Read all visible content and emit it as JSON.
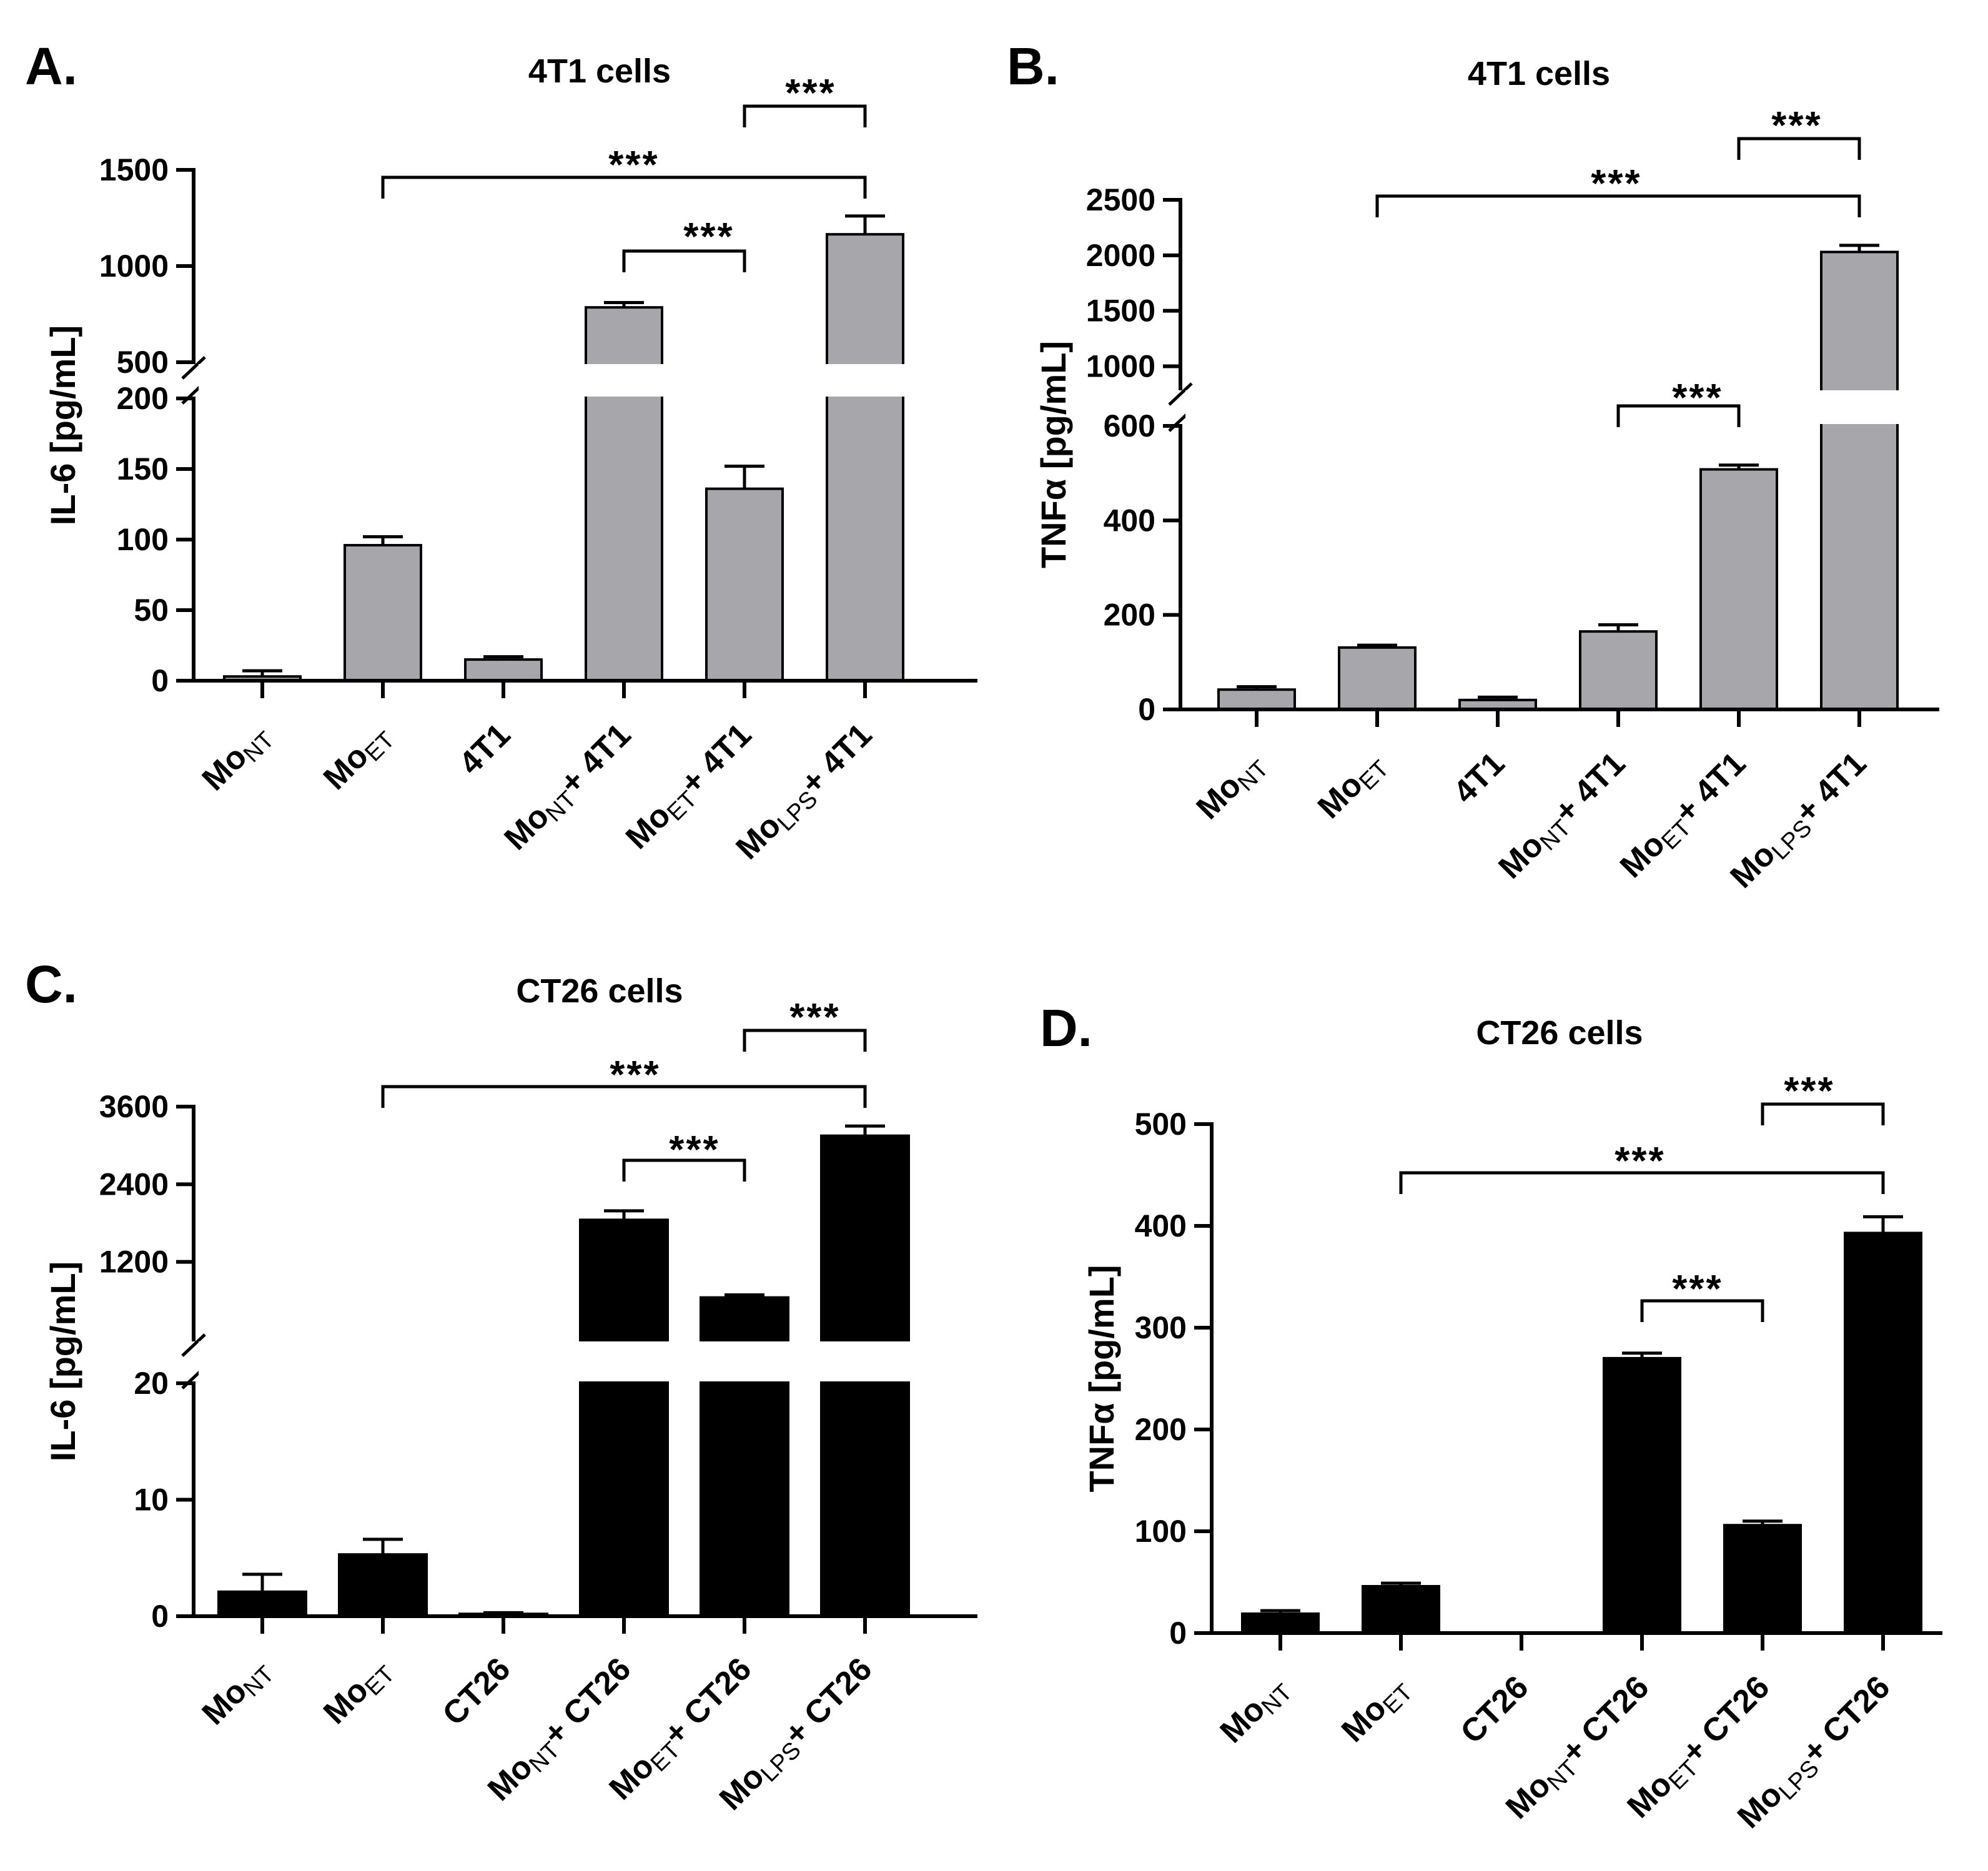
{
  "colors": {
    "gray_bar": "#a6a6ab",
    "black_bar": "#000000"
  },
  "chart_data": [
    {
      "panel": "A.",
      "type": "bar",
      "title": "4T1 cells",
      "ylabel": "IL-6 [pg/mL]",
      "broken_axis": true,
      "lower_range": [
        0,
        200
      ],
      "upper_range": [
        500,
        1500
      ],
      "lower_ticks": [
        "0",
        "50",
        "100",
        "150",
        "200"
      ],
      "upper_ticks": [
        "500",
        "1000",
        "1500"
      ],
      "categories": [
        {
          "main": "Mo",
          "sub": "NT",
          "rest": ""
        },
        {
          "main": "Mo",
          "sub": "ET",
          "rest": ""
        },
        {
          "main": "4T1",
          "sub": "",
          "rest": ""
        },
        {
          "main": "Mo",
          "sub": "NT",
          "rest": "+ 4T1"
        },
        {
          "main": "Mo",
          "sub": "ET",
          "rest": "+ 4T1"
        },
        {
          "main": "Mo",
          "sub": "LPS",
          "rest": "+ 4T1"
        }
      ],
      "values": [
        3,
        96,
        15,
        785,
        136,
        1165
      ],
      "errors": [
        4,
        6,
        2,
        25,
        16,
        95
      ],
      "significance": [
        {
          "from": 3,
          "to": 4,
          "label": "***"
        },
        {
          "from": 1,
          "to": 5,
          "label": "***"
        },
        {
          "from": 4,
          "to": 5,
          "label": "***"
        }
      ]
    },
    {
      "panel": "B.",
      "type": "bar",
      "title": "4T1 cells",
      "ylabel": "TNFα [pg/mL]",
      "broken_axis": true,
      "lower_range": [
        0,
        600
      ],
      "upper_range": [
        800,
        2500
      ],
      "lower_ticks": [
        "0",
        "200",
        "400",
        "600"
      ],
      "upper_ticks": [
        "1000",
        "1500",
        "2000",
        "2500"
      ],
      "categories": [
        {
          "main": "Mo",
          "sub": "NT",
          "rest": ""
        },
        {
          "main": "Mo",
          "sub": "ET",
          "rest": ""
        },
        {
          "main": "4T1",
          "sub": "",
          "rest": ""
        },
        {
          "main": "Mo",
          "sub": "NT",
          "rest": "+ 4T1"
        },
        {
          "main": "Mo",
          "sub": "ET",
          "rest": "+ 4T1"
        },
        {
          "main": "Mo",
          "sub": "LPS",
          "rest": "+ 4T1"
        }
      ],
      "values": [
        42,
        131,
        20,
        165,
        508,
        2030
      ],
      "errors": [
        6,
        5,
        6,
        14,
        9,
        60
      ],
      "significance": [
        {
          "from": 3,
          "to": 4,
          "label": "***"
        },
        {
          "from": 1,
          "to": 5,
          "label": "***"
        },
        {
          "from": 4,
          "to": 5,
          "label": "***"
        }
      ]
    },
    {
      "panel": "C.",
      "type": "bar",
      "title": "CT26 cells",
      "ylabel": "IL-6 [pg/mL]",
      "broken_axis": true,
      "lower_range": [
        0,
        20
      ],
      "upper_range": [
        0,
        3600
      ],
      "lower_ticks": [
        "0",
        "10",
        "20"
      ],
      "upper_ticks": [
        "1200",
        "2400",
        "3600"
      ],
      "categories": [
        {
          "main": "Mo",
          "sub": "NT",
          "rest": ""
        },
        {
          "main": "Mo",
          "sub": "ET",
          "rest": ""
        },
        {
          "main": "CT26",
          "sub": "",
          "rest": ""
        },
        {
          "main": "Mo",
          "sub": "NT",
          "rest": "+ CT26"
        },
        {
          "main": "Mo",
          "sub": "ET",
          "rest": "+ CT26"
        },
        {
          "main": "Mo",
          "sub": "LPS",
          "rest": "+ CT26"
        }
      ],
      "values": [
        2.1,
        5.3,
        0.2,
        1850,
        650,
        3150
      ],
      "errors": [
        1.5,
        1.3,
        0.1,
        140,
        40,
        150
      ],
      "significance": [
        {
          "from": 3,
          "to": 4,
          "label": "***"
        },
        {
          "from": 1,
          "to": 5,
          "label": "***"
        },
        {
          "from": 4,
          "to": 5,
          "label": "***"
        }
      ]
    },
    {
      "panel": "D.",
      "type": "bar",
      "title": "CT26 cells",
      "ylabel": "TNFα [pg/mL]",
      "broken_axis": false,
      "ylim": [
        0,
        500
      ],
      "ticks": [
        "0",
        "100",
        "200",
        "300",
        "400",
        "500"
      ],
      "categories": [
        {
          "main": "Mo",
          "sub": "NT",
          "rest": ""
        },
        {
          "main": "Mo",
          "sub": "ET",
          "rest": ""
        },
        {
          "main": "CT26",
          "sub": "",
          "rest": ""
        },
        {
          "main": "Mo",
          "sub": "NT",
          "rest": "+ CT26"
        },
        {
          "main": "Mo",
          "sub": "ET",
          "rest": "+ CT26"
        },
        {
          "main": "Mo",
          "sub": "LPS",
          "rest": "+ CT26"
        }
      ],
      "values": [
        19,
        46,
        0,
        270,
        106,
        393
      ],
      "errors": [
        3,
        3,
        0,
        5,
        4,
        16
      ],
      "significance": [
        {
          "from": 3,
          "to": 4,
          "label": "***"
        },
        {
          "from": 1,
          "to": 5,
          "label": "***"
        },
        {
          "from": 4,
          "to": 5,
          "label": "***"
        }
      ]
    }
  ]
}
